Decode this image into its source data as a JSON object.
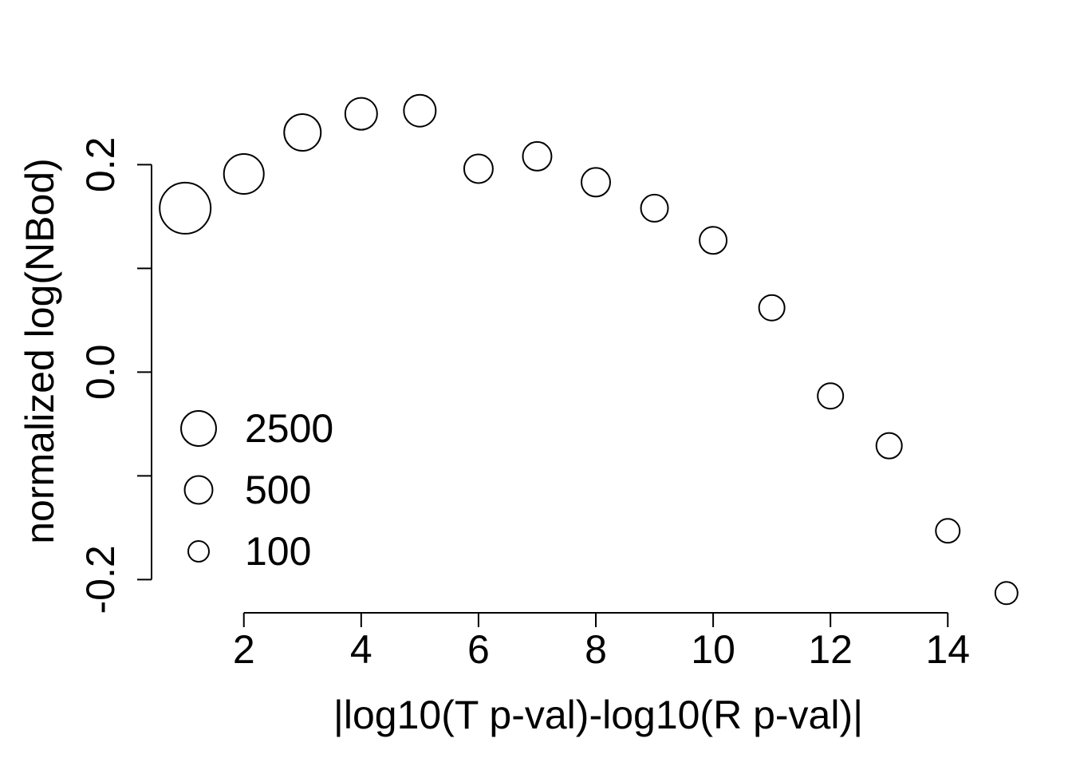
{
  "chart_data": {
    "type": "bubble",
    "x_label": "|log10(T p-val)-log10(R p-val)|",
    "y_label": "normalized log(NBod)",
    "x": [
      1,
      2,
      3,
      4,
      5,
      6,
      7,
      8,
      9,
      10,
      11,
      12,
      13,
      14,
      15
    ],
    "values": [
      0.158,
      0.191,
      0.231,
      0.249,
      0.252,
      0.196,
      0.208,
      0.183,
      0.158,
      0.127,
      0.062,
      -0.023,
      -0.071,
      -0.153,
      -0.213
    ],
    "sizes": [
      93000,
      7500,
      3650,
      1240,
      1240,
      600,
      600,
      600,
      420,
      420,
      295,
      295,
      295,
      205,
      143
    ],
    "size_legend": [
      2500,
      500,
      100
    ],
    "color": "#000000",
    "xlim": [
      0.44,
      15.56
    ],
    "ylim": [
      -0.232,
      0.271
    ],
    "xticks": [
      2,
      4,
      6,
      8,
      10,
      12,
      14
    ],
    "yticks": [
      -0.2,
      {
        "value": -0.1,
        "label": null
      },
      {
        "value": 0,
        "label": "0.0"
      },
      {
        "value": 0.1,
        "label": null
      },
      0.2
    ]
  }
}
